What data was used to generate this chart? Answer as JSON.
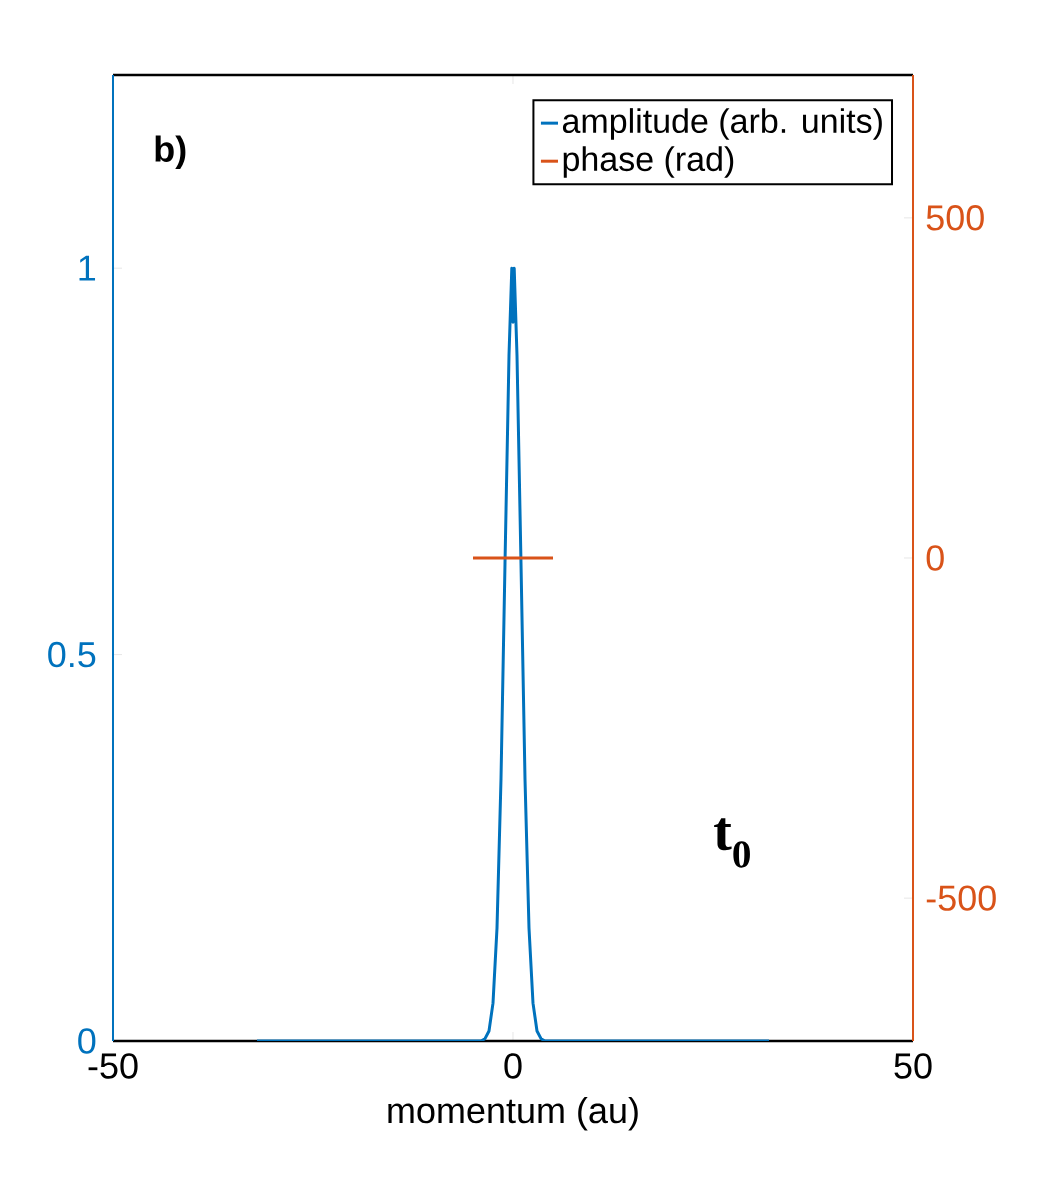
{
  "chart_data": {
    "type": "line",
    "xlabel": "momentum (au)",
    "legend": "top right",
    "xlim": [
      -50,
      50
    ],
    "xticks": [
      -50,
      0,
      50
    ],
    "ylim": [
      0,
      1.25
    ],
    "yticks": [
      0,
      0.5,
      1
    ],
    "y2lim": [
      -710,
      710
    ],
    "y2ticks": [
      -500,
      0,
      500
    ],
    "series": [
      {
        "name": "amplitude (arb. units)",
        "color": "#0072bd",
        "x": [
          -32,
          -4,
          -3.5,
          -3,
          -2.5,
          -2,
          -1.5,
          -1,
          -0.5,
          -0.15,
          0,
          0.15,
          0.5,
          1,
          1.5,
          2,
          2.5,
          3,
          3.5,
          4,
          32
        ],
        "values": [
          0,
          0,
          0.003,
          0.013,
          0.049,
          0.146,
          0.339,
          0.618,
          0.887,
          1,
          0.93,
          1,
          0.887,
          0.618,
          0.339,
          0.146,
          0.049,
          0.013,
          0.003,
          0,
          0
        ]
      },
      {
        "name": "phase (rad)",
        "color": "#d95319",
        "axis": "y2",
        "x": [
          -5,
          5
        ],
        "values": [
          0,
          0
        ]
      }
    ],
    "annotations": [
      "b)",
      "t$_{0}$"
    ]
  }
}
